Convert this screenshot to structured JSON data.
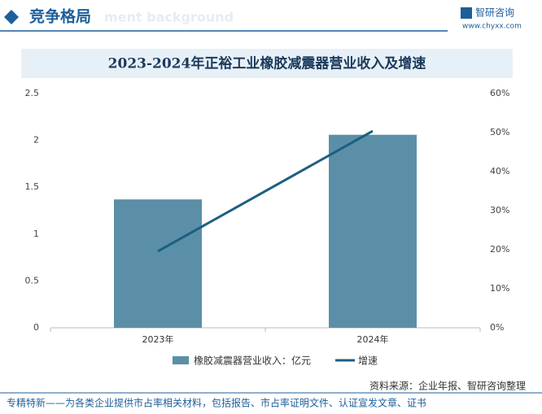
{
  "header": {
    "title": "竞争格局",
    "watermark": "ment background",
    "brand": "智研咨询",
    "url": "www.chyxx.com"
  },
  "chart_data": {
    "type": "bar",
    "title": "2023-2024年正裕工业橡胶减震器营业收入及增速",
    "categories": [
      "2023年",
      "2024年"
    ],
    "series": [
      {
        "name": "橡胶减震器营业收入：亿元",
        "type": "bar",
        "color": "#5b8fa8",
        "values": [
          1.37,
          2.06
        ]
      },
      {
        "name": "增速",
        "type": "line",
        "color": "#1d5f80",
        "axis": "y2",
        "values": [
          19.6,
          50.4
        ]
      }
    ],
    "ylim": [
      0,
      2.5
    ],
    "yticks": [
      0,
      0.5,
      1,
      1.5,
      2,
      2.5
    ],
    "y2lim": [
      0,
      60
    ],
    "y2ticks": [
      {
        "value": 0,
        "label": "0%"
      },
      {
        "value": 10,
        "label": "10%"
      },
      {
        "value": 20,
        "label": "20%"
      },
      {
        "value": 30,
        "label": "30%"
      },
      {
        "value": 40,
        "label": "40%"
      },
      {
        "value": 50,
        "label": "50%"
      },
      {
        "value": 60,
        "label": "60%"
      }
    ],
    "legend": "bottom"
  },
  "footer": {
    "source": "资料来源：企业年报、智研咨询整理",
    "slogan": "专精特新——为各类企业提供市占率相关材料，包括报告、市占率证明文件、认证宣发文章、证书"
  }
}
